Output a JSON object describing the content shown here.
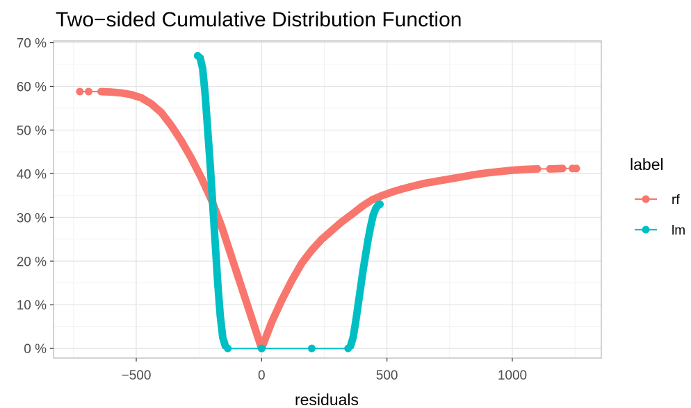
{
  "chart_data": {
    "type": "scatter",
    "title": "Two−sided Cumulative Distribution Function",
    "xlabel": "residuals",
    "ylabel": "",
    "xlim": [
      -830,
      1355
    ],
    "ylim": [
      -2.2,
      70.4
    ],
    "x_ticks": [
      {
        "value": -500,
        "label": "−500"
      },
      {
        "value": 0,
        "label": "0"
      },
      {
        "value": 500,
        "label": "500"
      },
      {
        "value": 1000,
        "label": "1000"
      }
    ],
    "y_ticks": [
      {
        "value": 0,
        "label": "0 %"
      },
      {
        "value": 10,
        "label": "10 %"
      },
      {
        "value": 20,
        "label": "20 %"
      },
      {
        "value": 30,
        "label": "30 %"
      },
      {
        "value": 40,
        "label": "40 %"
      },
      {
        "value": 50,
        "label": "50 %"
      },
      {
        "value": 60,
        "label": "60 %"
      },
      {
        "value": 70,
        "label": "70 %"
      }
    ],
    "grid": true,
    "legend": {
      "title": "label",
      "placement": "right"
    },
    "series": [
      {
        "name": "rf",
        "color": "#F8766D",
        "points": [
          [
            -725,
            58.8
          ],
          [
            -690,
            58.8
          ],
          [
            -640,
            58.8
          ],
          [
            -600,
            58.7
          ],
          [
            -560,
            58.5
          ],
          [
            -520,
            58.1
          ],
          [
            -480,
            57.4
          ],
          [
            -440,
            56.0
          ],
          [
            -400,
            54.0
          ],
          [
            -360,
            51.0
          ],
          [
            -320,
            47.5
          ],
          [
            -280,
            43.5
          ],
          [
            -240,
            39.0
          ],
          [
            -200,
            34.0
          ],
          [
            -160,
            28.0
          ],
          [
            -120,
            21.0
          ],
          [
            -80,
            14.0
          ],
          [
            -40,
            7.0
          ],
          [
            0,
            0.0
          ],
          [
            40,
            6.0
          ],
          [
            80,
            11.0
          ],
          [
            120,
            15.5
          ],
          [
            160,
            19.5
          ],
          [
            200,
            22.5
          ],
          [
            240,
            25.0
          ],
          [
            280,
            27.0
          ],
          [
            320,
            29.0
          ],
          [
            360,
            30.7
          ],
          [
            400,
            32.5
          ],
          [
            440,
            34.0
          ],
          [
            480,
            35.0
          ],
          [
            520,
            35.8
          ],
          [
            560,
            36.5
          ],
          [
            600,
            37.1
          ],
          [
            650,
            37.8
          ],
          [
            700,
            38.3
          ],
          [
            750,
            38.8
          ],
          [
            800,
            39.3
          ],
          [
            850,
            39.8
          ],
          [
            900,
            40.2
          ],
          [
            950,
            40.5
          ],
          [
            1000,
            40.8
          ],
          [
            1050,
            41.0
          ],
          [
            1100,
            41.1
          ],
          [
            1150,
            41.1
          ],
          [
            1200,
            41.2
          ],
          [
            1240,
            41.2
          ],
          [
            1255,
            41.2
          ]
        ]
      },
      {
        "name": "lm",
        "color": "#00BFC4",
        "points": [
          [
            -255,
            67.0
          ],
          [
            -245,
            66.5
          ],
          [
            -235,
            64.0
          ],
          [
            -225,
            58.0
          ],
          [
            -215,
            50.0
          ],
          [
            -205,
            42.0
          ],
          [
            -195,
            33.0
          ],
          [
            -185,
            24.0
          ],
          [
            -175,
            15.0
          ],
          [
            -165,
            7.5
          ],
          [
            -155,
            2.5
          ],
          [
            -145,
            0.6
          ],
          [
            -135,
            0.0
          ],
          [
            0,
            0.0
          ],
          [
            200,
            0.0
          ],
          [
            345,
            0.0
          ],
          [
            355,
            0.6
          ],
          [
            365,
            2.5
          ],
          [
            375,
            6.0
          ],
          [
            385,
            10.0
          ],
          [
            395,
            14.0
          ],
          [
            405,
            18.0
          ],
          [
            415,
            21.5
          ],
          [
            425,
            25.0
          ],
          [
            435,
            28.0
          ],
          [
            445,
            30.5
          ],
          [
            455,
            32.0
          ],
          [
            465,
            32.8
          ],
          [
            472,
            33.0
          ]
        ]
      }
    ]
  }
}
